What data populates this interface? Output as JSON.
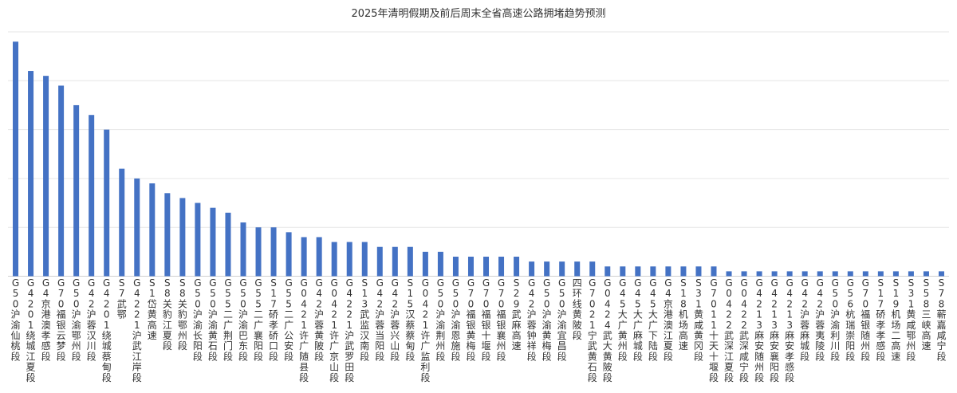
{
  "chart_data": {
    "type": "bar",
    "title": "2025年清明假期及前后周末全省高速公路拥堵趋势预测",
    "xlabel": "",
    "ylabel": "",
    "ylim": [
      0,
      5
    ],
    "grid": true,
    "legend": "none",
    "bar_color": "#4472C4",
    "categories": [
      "G50沪渝仙桃段",
      "G4201绕城江夏段",
      "G4京港澳孝感段",
      "G70福银云梦段",
      "G50沪渝鄂州段",
      "G42沪蓉汉川段",
      "G4201绕城蔡甸段",
      "S7武鄂",
      "G4221沪武江岸段",
      "S1岱黄高速",
      "S8关豹江夏段",
      "S8关豹鄂州段",
      "G50沪渝长阳段",
      "G50沪渝黄石段",
      "G55二广荆门段",
      "G50沪渝巴东段",
      "G55二广襄阳段",
      "S17硚孝硚口段",
      "G55二广公安段",
      "G0421许广随县段",
      "G42沪蓉黄陂段",
      "G0421许广京山段",
      "G4221沪武罗田段",
      "S13武监汉南段",
      "G42沪蓉当阳段",
      "G42沪蓉兴山段",
      "S15汉蔡蔡甸段",
      "G0421许广监利段",
      "G50沪渝荆州段",
      "G50沪渝恩施段",
      "G70福银黄梅段",
      "G70福银十堰段",
      "G70福银襄州段",
      "S29武麻高速",
      "G42沪蓉钟祥段",
      "G50沪渝黄梅段",
      "G50沪渝宜昌段",
      "四环线黄陂段",
      "G7021宁武黄石段",
      "G0424武大黄陂段",
      "G45大广黄州段",
      "G45大广麻城段",
      "G45大广下陆段",
      "G4京港澳江夏段",
      "S18机场高速",
      "S31黄咸黄冈段",
      "G7011十天十堰段",
      "G0422武深江夏段",
      "G0422武深咸宁段",
      "G4213麻安随州段",
      "G4213麻安襄阳段",
      "G4213麻安孝感段",
      "G42沪蓉麻城段",
      "G42沪蓉夷陵段",
      "G50沪渝利川段",
      "G56杭瑞崇阳段",
      "G70福银随州段",
      "S17硚孝孝感段",
      "S19机场二高速",
      "S31黄咸鄂州段",
      "S58三峡高速",
      "S78蕲嘉咸宁段"
    ],
    "values": [
      4.8,
      4.2,
      4.1,
      3.9,
      3.5,
      3.3,
      3.0,
      2.2,
      2.0,
      1.9,
      1.7,
      1.6,
      1.5,
      1.4,
      1.3,
      1.1,
      1.0,
      1.0,
      0.9,
      0.8,
      0.8,
      0.7,
      0.7,
      0.7,
      0.6,
      0.6,
      0.6,
      0.5,
      0.5,
      0.4,
      0.4,
      0.4,
      0.4,
      0.4,
      0.3,
      0.3,
      0.3,
      0.3,
      0.3,
      0.2,
      0.2,
      0.2,
      0.2,
      0.2,
      0.2,
      0.2,
      0.2,
      0.1,
      0.1,
      0.1,
      0.1,
      0.1,
      0.1,
      0.1,
      0.1,
      0.1,
      0.1,
      0.1,
      0.1,
      0.1,
      0.1,
      0.1
    ]
  }
}
